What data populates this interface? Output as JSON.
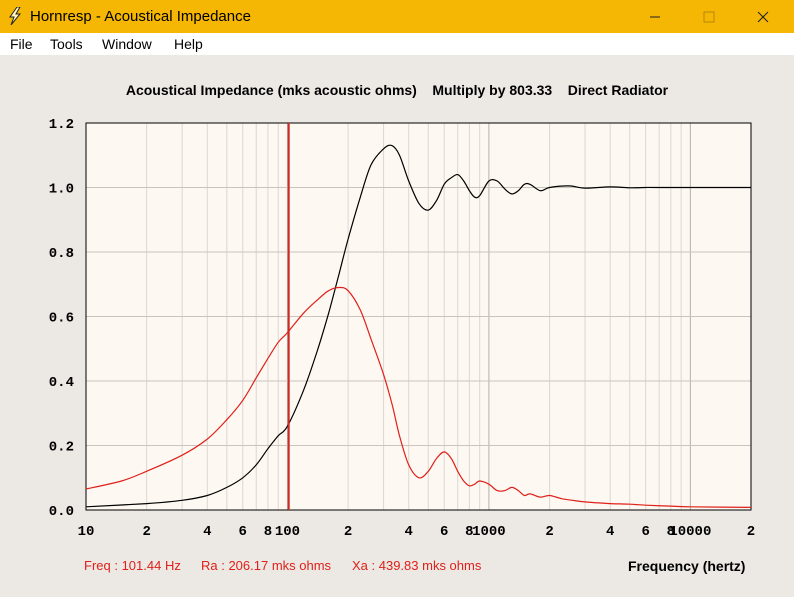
{
  "window": {
    "title": "Hornresp - Acoustical Impedance",
    "icon": "lightning-icon"
  },
  "menu": {
    "items": [
      "File",
      "Tools",
      "Window",
      "Help"
    ]
  },
  "chart_data": {
    "type": "line",
    "title": "Acoustical Impedance (mks acoustic ohms)    Multiply by 803.33    Direct Radiator",
    "xlabel": "Frequency (hertz)",
    "ylabel": "",
    "xscale": "log",
    "xlim": [
      10,
      20000
    ],
    "ylim": [
      0,
      1.2
    ],
    "grid": true,
    "y_ticks": [
      "1.2",
      "1.0",
      "0.8",
      "0.6",
      "0.4",
      "0.2",
      "0.0"
    ],
    "x_tick_labels": [
      {
        "f": 10,
        "label": "10"
      },
      {
        "f": 20,
        "label": "2"
      },
      {
        "f": 40,
        "label": "4"
      },
      {
        "f": 60,
        "label": "6"
      },
      {
        "f": 80,
        "label": "8"
      },
      {
        "f": 100,
        "label": "100"
      },
      {
        "f": 200,
        "label": "2"
      },
      {
        "f": 400,
        "label": "4"
      },
      {
        "f": 600,
        "label": "6"
      },
      {
        "f": 800,
        "label": "8"
      },
      {
        "f": 1000,
        "label": "1000"
      },
      {
        "f": 2000,
        "label": "2"
      },
      {
        "f": 4000,
        "label": "4"
      },
      {
        "f": 6000,
        "label": "6"
      },
      {
        "f": 8000,
        "label": "8"
      },
      {
        "f": 10000,
        "label": "10000"
      },
      {
        "f": 20000,
        "label": "2"
      }
    ],
    "marker_frequency": 101.44,
    "series": [
      {
        "color": "#000000",
        "x": [
          10,
          20,
          30,
          40,
          50,
          60,
          70,
          80,
          90,
          100,
          120,
          140,
          160,
          180,
          200,
          230,
          260,
          300,
          330,
          360,
          400,
          450,
          500,
          550,
          600,
          650,
          700,
          750,
          800,
          850,
          900,
          1000,
          1100,
          1200,
          1300,
          1400,
          1500,
          1600,
          1800,
          2000,
          2500,
          3000,
          4000,
          5000,
          6000,
          7000,
          20000
        ],
        "y": [
          0.01,
          0.02,
          0.03,
          0.045,
          0.07,
          0.1,
          0.14,
          0.19,
          0.23,
          0.26,
          0.37,
          0.49,
          0.61,
          0.73,
          0.84,
          0.97,
          1.07,
          1.12,
          1.13,
          1.1,
          1.02,
          0.95,
          0.93,
          0.96,
          1.01,
          1.03,
          1.04,
          1.02,
          0.99,
          0.97,
          0.975,
          1.02,
          1.02,
          0.995,
          0.98,
          0.99,
          1.01,
          1.01,
          0.99,
          1.0,
          1.005,
          0.998,
          1.002,
          0.999,
          1.0,
          1.0,
          1.0
        ]
      },
      {
        "color": "#e0201a",
        "x": [
          10,
          15,
          20,
          30,
          40,
          50,
          60,
          70,
          80,
          90,
          100,
          120,
          140,
          160,
          180,
          200,
          230,
          260,
          300,
          330,
          360,
          400,
          450,
          500,
          550,
          600,
          650,
          700,
          750,
          800,
          850,
          900,
          1000,
          1100,
          1200,
          1300,
          1400,
          1500,
          1600,
          1800,
          2000,
          2300,
          2600,
          3000,
          4000,
          5000,
          6000,
          8000,
          10000,
          20000
        ],
        "y": [
          0.065,
          0.09,
          0.12,
          0.17,
          0.22,
          0.28,
          0.34,
          0.41,
          0.47,
          0.52,
          0.55,
          0.61,
          0.65,
          0.68,
          0.69,
          0.68,
          0.62,
          0.53,
          0.42,
          0.33,
          0.23,
          0.14,
          0.1,
          0.12,
          0.16,
          0.18,
          0.16,
          0.12,
          0.09,
          0.075,
          0.08,
          0.09,
          0.08,
          0.06,
          0.06,
          0.07,
          0.06,
          0.045,
          0.05,
          0.04,
          0.045,
          0.035,
          0.03,
          0.025,
          0.02,
          0.018,
          0.015,
          0.012,
          0.01,
          0.008
        ]
      }
    ]
  },
  "readouts": {
    "freq": "Freq : 101.44 Hz",
    "ra": "Ra : 206.17 mks ohms",
    "xa": "Xa : 439.83 mks ohms"
  },
  "colors": {
    "titlebar": "#f5b703",
    "plot_bg": "#fdf8f1",
    "grid": "#d0ccc5",
    "marker": "#cc2a24",
    "readout": "#e0201a"
  }
}
